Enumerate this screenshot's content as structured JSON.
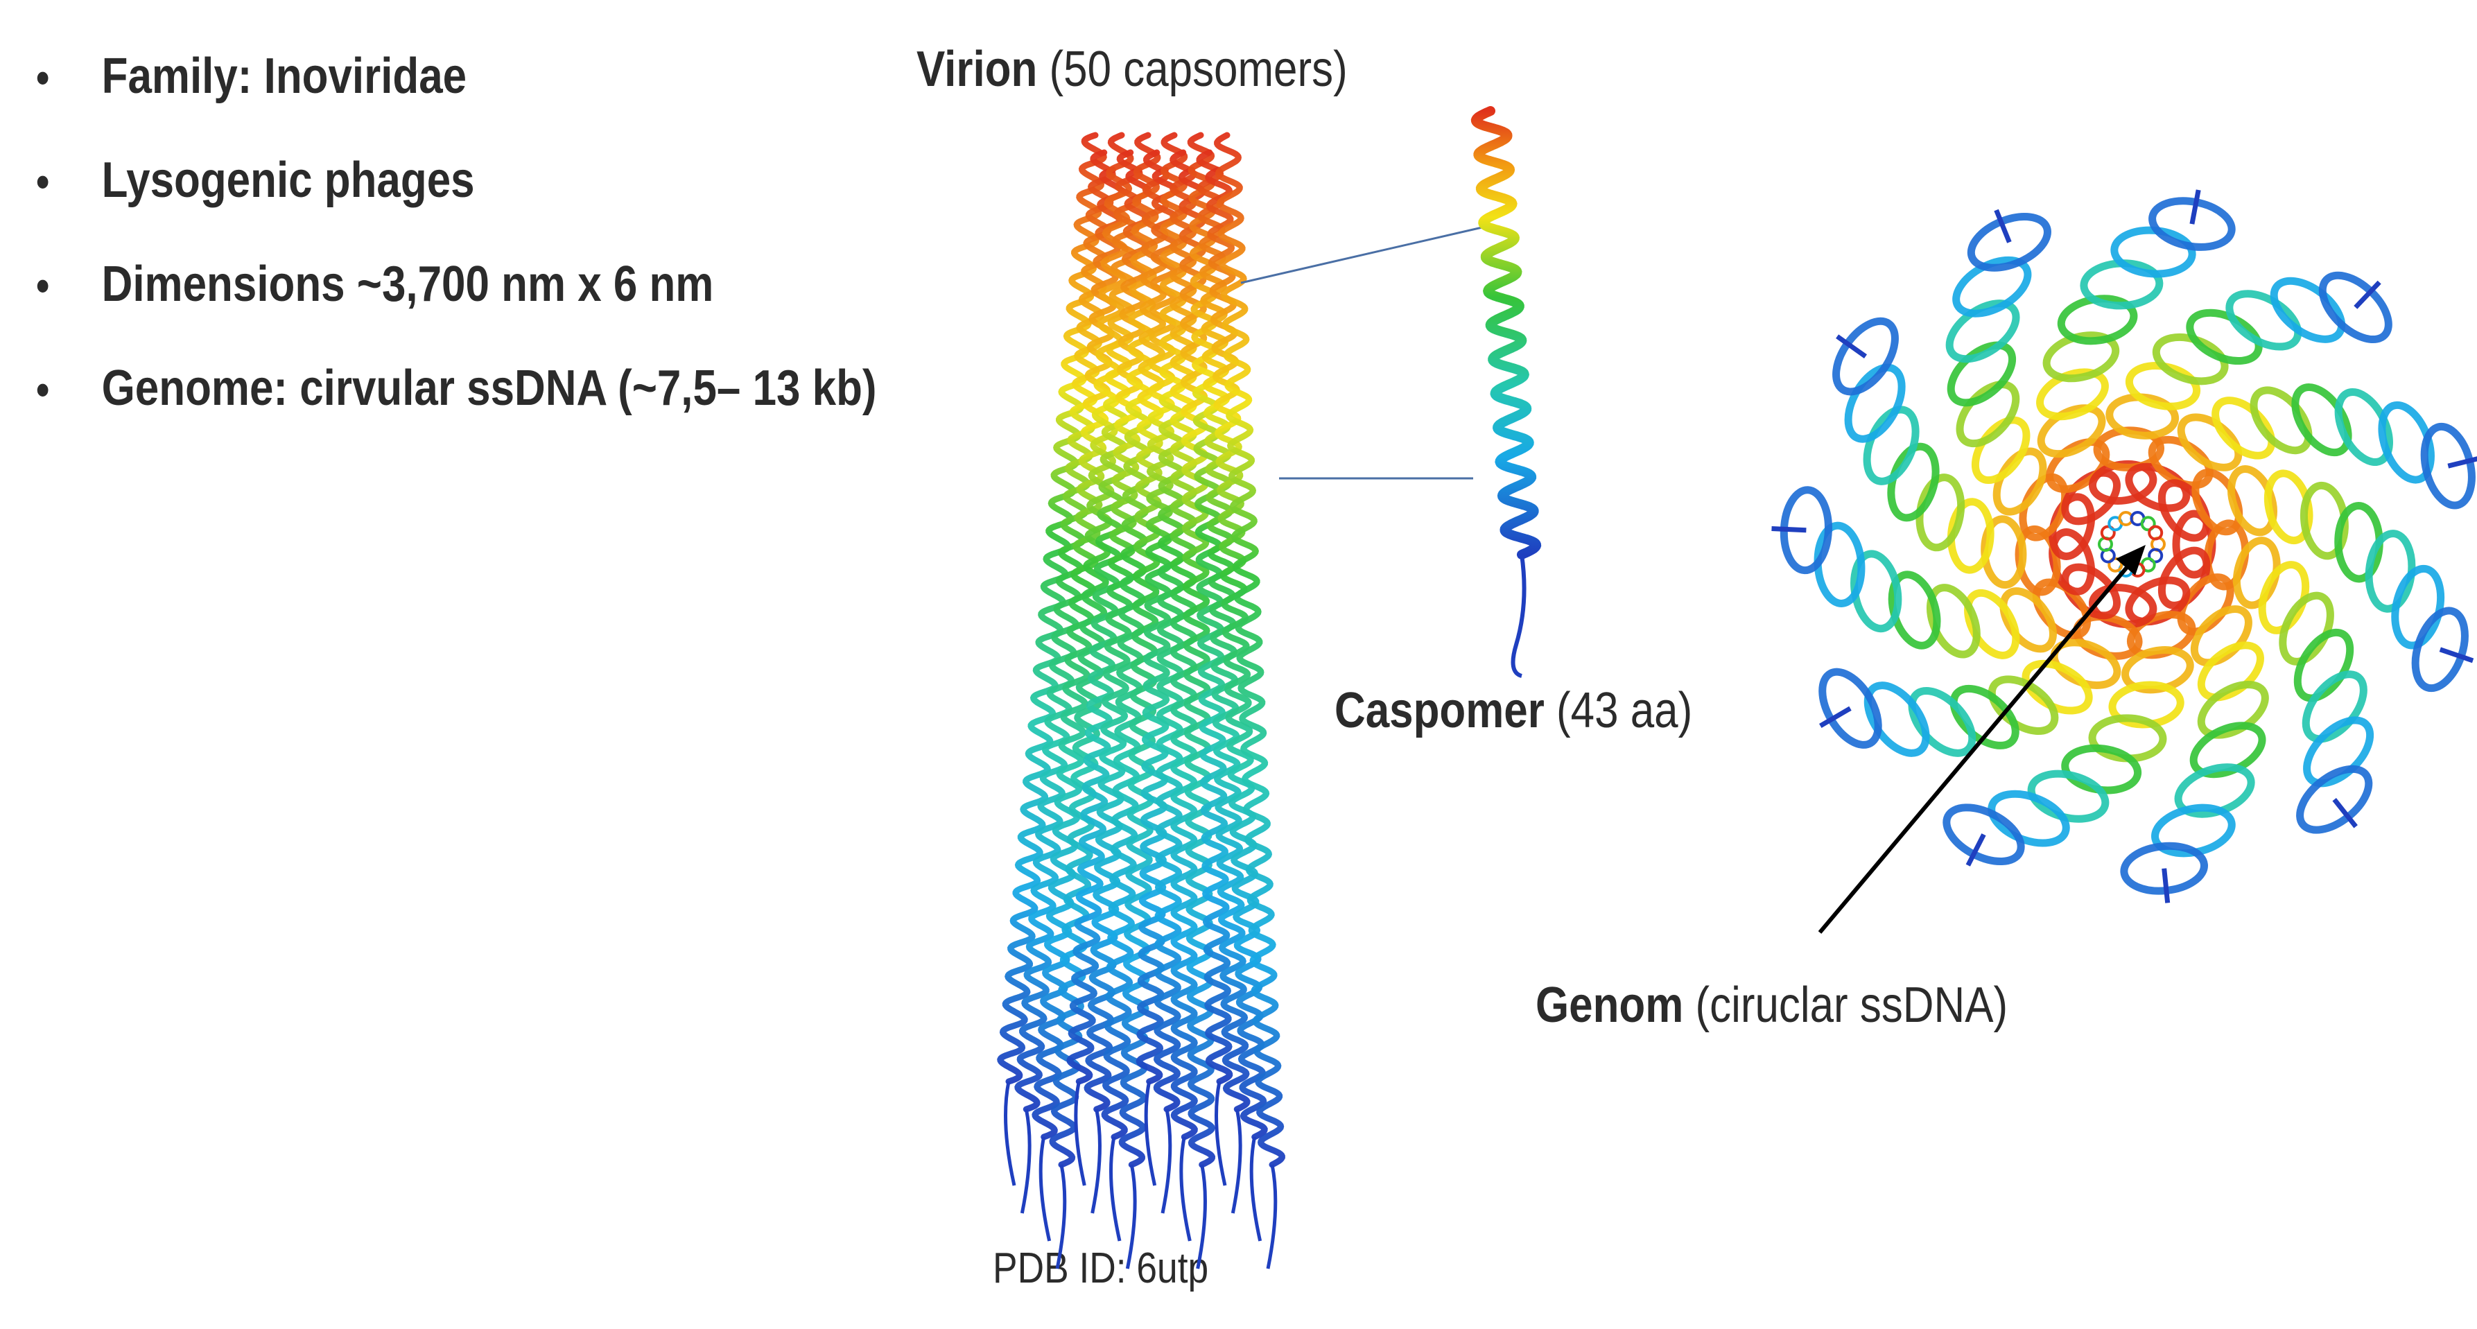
{
  "bullets": [
    "Family: Inoviridae",
    "Lysogenic phages",
    "Dimensions ~3,700 nm x 6 nm",
    "Genome: cirvular ssDNA (~7,5– 13 kb)"
  ],
  "virion_label": {
    "bold": "Virion",
    "plain": " (50 capsomers)"
  },
  "capsomer_label": {
    "bold": "Caspomer",
    "plain": " (43 aa)"
  },
  "genom_label": {
    "bold": "Genom",
    "plain": " (ciruclar ssDNA)"
  },
  "pdb_label": "PDB ID: 6utp",
  "colors": {
    "text": "#2b2b2b",
    "connector": "#4a6fa5",
    "arrow": "#000000",
    "helix_gradient": [
      "#1f3fbf",
      "#18a9e6",
      "#25c7b0",
      "#36c43a",
      "#f2e216",
      "#f29a12",
      "#e0321b"
    ]
  }
}
